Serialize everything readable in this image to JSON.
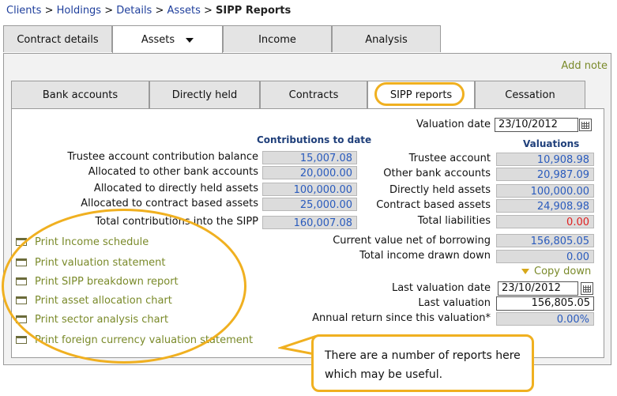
{
  "breadcrumb": {
    "links": [
      "Clients",
      "Holdings",
      "Details",
      "Assets"
    ],
    "separator": ">",
    "current": "SIPP Reports"
  },
  "top_tabs": [
    "Contract details",
    "Assets",
    "Income",
    "Analysis"
  ],
  "add_note": "Add note",
  "inner_tabs": [
    "Bank accounts",
    "Directly held",
    "Contracts",
    "SIPP reports",
    "Cessation"
  ],
  "valuation_date": {
    "label": "Valuation date",
    "value": "23/10/2012"
  },
  "contributions": {
    "header": "Contributions to date",
    "rows": [
      {
        "label": "Trustee account contribution balance",
        "value": "15,007.08"
      },
      {
        "label": "Allocated to other bank accounts",
        "value": "20,000.00"
      },
      {
        "label": "Allocated to directly held assets",
        "value": "100,000.00"
      },
      {
        "label": "Allocated to contract based assets",
        "value": "25,000.00"
      },
      {
        "label": "Total contributions into the SIPP",
        "value": "160,007.08"
      }
    ]
  },
  "valuations": {
    "header": "Valuations",
    "rows": [
      {
        "label": "Trustee account",
        "value": "10,908.98"
      },
      {
        "label": "Other bank accounts",
        "value": "20,987.09"
      },
      {
        "label": "Directly held assets",
        "value": "100,000.00"
      },
      {
        "label": "Contract based assets",
        "value": "24,908.98"
      },
      {
        "label": "Total liabilities",
        "value": "0.00"
      }
    ],
    "current_value": {
      "label": "Current value net of borrowing",
      "value": "156,805.05"
    },
    "income_drawn": {
      "label": "Total income drawn down",
      "value": "0.00"
    }
  },
  "copy_down": "Copy down",
  "last_valuation_date": {
    "label": "Last valuation date",
    "value": "23/10/2012"
  },
  "last_valuation": {
    "label": "Last valuation",
    "value": "156,805.05"
  },
  "annual_return": {
    "label": "Annual return since this valuation*",
    "value": "0.00%"
  },
  "print_links": [
    "Print Income schedule",
    "Print valuation statement",
    "Print SIPP breakdown report",
    "Print asset allocation chart",
    "Print sector analysis chart",
    "Print foreign currency valuation statement"
  ],
  "callout": "There are a number of reports here which may be useful.",
  "colors": {
    "accent_orange": "#f0b020",
    "link_olive": "#7a8a2a",
    "value_blue": "#2a5bbd",
    "negative_red": "#e02020"
  }
}
